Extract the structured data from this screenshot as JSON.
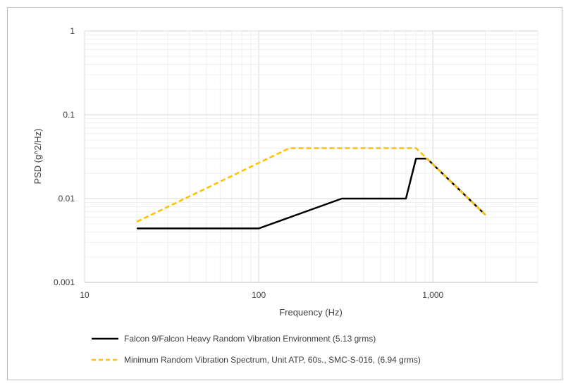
{
  "chart_data": {
    "type": "line",
    "xscale": "log",
    "yscale": "log",
    "xlim": [
      10,
      4000
    ],
    "ylim": [
      0.001,
      1
    ],
    "xlabel": "Frequency (Hz)",
    "ylabel": "PSD (g^2/Hz)",
    "xticks": [
      {
        "v": 10,
        "label": "10"
      },
      {
        "v": 100,
        "label": "100"
      },
      {
        "v": 1000,
        "label": "1,000"
      }
    ],
    "yticks": [
      {
        "v": 1,
        "label": "1"
      },
      {
        "v": 0.1,
        "label": "0.1"
      },
      {
        "v": 0.01,
        "label": "0.01"
      },
      {
        "v": 0.001,
        "label": "0.001"
      }
    ],
    "grid": true,
    "legend_position": "bottom",
    "series": [
      {
        "name": "Falcon 9/Falcon Heavy Random Vibration Environment (5.13 grms)",
        "color": "#000000",
        "style": "solid",
        "x": [
          20,
          100,
          300,
          700,
          800,
          925,
          2000
        ],
        "y": [
          0.0044,
          0.0044,
          0.01,
          0.01,
          0.03,
          0.03,
          0.0064
        ]
      },
      {
        "name": "Minimum Random Vibration Spectrum, Unit ATP, 60s., SMC-S-016, (6.94 grms)",
        "color": "#FFC000",
        "style": "dashed",
        "x": [
          20,
          150,
          800,
          2000
        ],
        "y": [
          0.0053,
          0.04,
          0.04,
          0.0064
        ]
      }
    ]
  }
}
